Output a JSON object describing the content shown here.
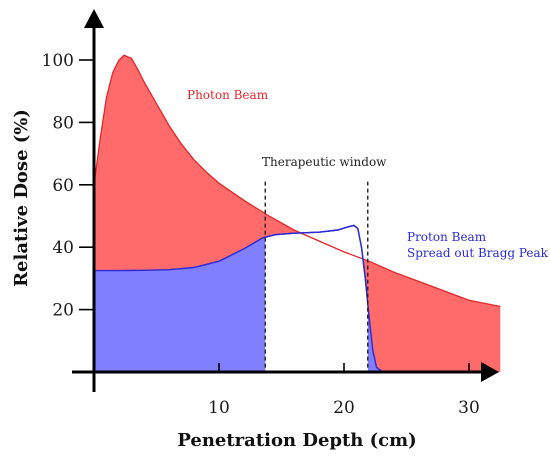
{
  "chart_data": {
    "type": "area",
    "xlabel": "Penetration Depth (cm)",
    "ylabel": "Relative Dose (%)",
    "xlim": [
      0,
      32.5
    ],
    "ylim": [
      0,
      110
    ],
    "x_ticks": [
      "10",
      "20",
      "30"
    ],
    "x_tick_values": [
      10,
      20,
      30
    ],
    "y_ticks": [
      "20",
      "40",
      "60",
      "80",
      "100"
    ],
    "y_tick_values": [
      20,
      40,
      60,
      80,
      100
    ],
    "grid": false,
    "series": [
      {
        "name": "Photon Beam",
        "color": "#ff6a6a",
        "line_color": "#e02828",
        "points": [
          [
            0,
            60
          ],
          [
            0.5,
            75
          ],
          [
            1,
            88
          ],
          [
            1.5,
            96
          ],
          [
            2,
            100
          ],
          [
            2.4,
            101.5
          ],
          [
            3,
            100.5
          ],
          [
            3.5,
            97
          ],
          [
            4,
            93
          ],
          [
            5,
            86
          ],
          [
            6,
            79
          ],
          [
            7,
            73
          ],
          [
            8,
            68
          ],
          [
            9,
            64
          ],
          [
            10,
            60.5
          ],
          [
            12,
            55
          ],
          [
            14,
            50
          ],
          [
            16,
            45.5
          ],
          [
            18,
            42
          ],
          [
            20,
            38.5
          ],
          [
            22,
            35.5
          ],
          [
            24,
            32
          ],
          [
            26,
            29
          ],
          [
            28,
            26
          ],
          [
            30,
            23
          ],
          [
            32.5,
            21
          ]
        ]
      },
      {
        "name": "Proton Beam Spread out Bragg Peak",
        "color": "#7f7fff",
        "line_color": "#2a2ad6",
        "points": [
          [
            0,
            32.5
          ],
          [
            2,
            32.5
          ],
          [
            4,
            32.6
          ],
          [
            6,
            32.8
          ],
          [
            8,
            33.5
          ],
          [
            10,
            35.5
          ],
          [
            12,
            39.5
          ],
          [
            13.5,
            43
          ],
          [
            14.5,
            44
          ],
          [
            16,
            44.5
          ],
          [
            18,
            44.8
          ],
          [
            19.5,
            45.5
          ],
          [
            20.3,
            46.5
          ],
          [
            20.8,
            47
          ],
          [
            21.1,
            46
          ],
          [
            21.4,
            40
          ],
          [
            21.7,
            30
          ],
          [
            22.0,
            18
          ],
          [
            22.3,
            7
          ],
          [
            22.6,
            1.5
          ],
          [
            23,
            0.3
          ],
          [
            25,
            0
          ]
        ]
      }
    ],
    "annotations": [
      {
        "text": "Therapeutic window",
        "x_range": [
          13.7,
          21.9
        ]
      },
      {
        "text": "Photon Beam"
      },
      {
        "text": "Proton Beam"
      },
      {
        "text": "Spread out Bragg Peak"
      }
    ]
  }
}
